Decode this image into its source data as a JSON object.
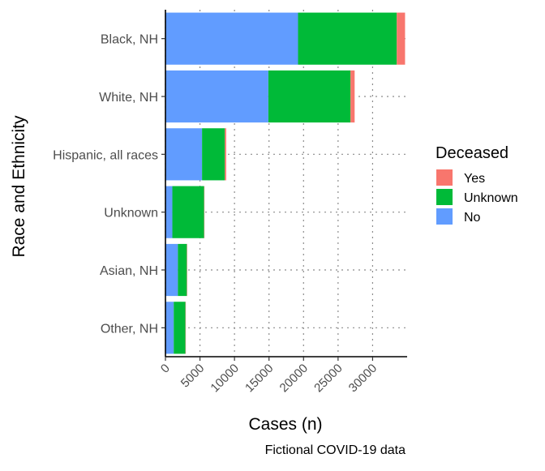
{
  "chart_data": {
    "type": "bar",
    "orientation": "horizontal",
    "stacked": true,
    "categories": [
      "Black, NH",
      "White, NH",
      "Hispanic, all races",
      "Unknown",
      "Asian, NH",
      "Other, NH"
    ],
    "series": [
      {
        "name": "No",
        "color": "#619CFF",
        "values": [
          19200,
          14900,
          5300,
          1000,
          1800,
          1200
        ]
      },
      {
        "name": "Unknown",
        "color": "#00BA38",
        "values": [
          14300,
          11900,
          3300,
          4600,
          1300,
          1700
        ]
      },
      {
        "name": "Yes",
        "color": "#F8766D",
        "values": [
          1200,
          600,
          200,
          50,
          50,
          50
        ]
      }
    ],
    "xlabel": "Cases (n)",
    "ylabel": "Race and Ethnicity",
    "xticks": [
      0,
      5000,
      10000,
      15000,
      20000,
      25000,
      30000
    ],
    "xtick_labels": [
      "0",
      "5000",
      "10000",
      "15000",
      "20000",
      "25000",
      "30000"
    ],
    "xlim": [
      0,
      35000
    ],
    "grid": "dotted",
    "legend": {
      "title": "Deceased",
      "position": "right",
      "items": [
        {
          "label": "Yes",
          "color": "#F8766D"
        },
        {
          "label": "Unknown",
          "color": "#00BA38"
        },
        {
          "label": "No",
          "color": "#619CFF"
        }
      ]
    },
    "caption": "Fictional COVID-19 data"
  }
}
